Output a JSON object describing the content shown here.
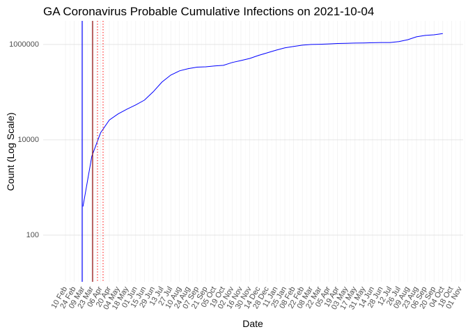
{
  "chart_data": {
    "type": "line",
    "title": "GA Coronavirus Probable Cumulative Infections on 2021-10-04",
    "x_label": "Date",
    "y_label": "Count (Log Scale)",
    "log_y": true,
    "grid": true,
    "color": "#0000ff",
    "ylim": [
      10.5,
      3130000
    ],
    "yticks": [
      100,
      10000,
      1000000
    ],
    "categories": [
      "10 Feb",
      "24 Feb",
      "09 Mar",
      "23 Mar",
      "06 Apr",
      "20 Apr",
      "04 May",
      "18 May",
      "01 Jun",
      "15 Jun",
      "29 Jun",
      "13 Jul",
      "27 Jul",
      "10 Aug",
      "24 Aug",
      "07 Sep",
      "21 Sep",
      "05 Oct",
      "19 Oct",
      "02 Nov",
      "16 Nov",
      "30 Nov",
      "14 Dec",
      "28 Dec",
      "11 Jan",
      "25 Jan",
      "08 Feb",
      "22 Feb",
      "08 Mar",
      "22 Mar",
      "05 Apr",
      "19 Apr",
      "03 May",
      "17 May",
      "31 May",
      "14 Jun",
      "28 Jun",
      "12 Jul",
      "26 Jul",
      "09 Aug",
      "23 Aug",
      "06 Sep",
      "20 Sep",
      "04 Oct",
      "18 Oct",
      "01 Nov"
    ],
    "values": [
      null,
      null,
      400,
      4500,
      14000,
      26000,
      35000,
      44000,
      54000,
      68000,
      102000,
      163000,
      228000,
      280000,
      312000,
      335000,
      340000,
      355000,
      365000,
      420000,
      460000,
      510000,
      590000,
      670000,
      760000,
      850000,
      910000,
      970000,
      1000000,
      1010000,
      1030000,
      1050000,
      1060000,
      1070000,
      1080000,
      1090000,
      1100000,
      1100000,
      1150000,
      1260000,
      1450000,
      1550000,
      1600000,
      1700000,
      null,
      null
    ]
  }
}
